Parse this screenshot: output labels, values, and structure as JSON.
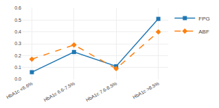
{
  "chart_data": {
    "type": "line",
    "categories": [
      "HbA1c <6.6%",
      "HbA1c 6.6-7.5%",
      "HbA1c 7.6-8.5%",
      "HbA1c >8.5%"
    ],
    "series": [
      {
        "name": "FPG",
        "values": [
          0.06,
          0.23,
          0.11,
          0.51
        ],
        "marker": "square",
        "line_style": "solid"
      },
      {
        "name": "ABF",
        "values": [
          0.17,
          0.29,
          0.09,
          0.4
        ],
        "marker": "diamond",
        "line_style": "dashed"
      }
    ],
    "ylim": [
      0,
      0.6
    ],
    "yticks": [
      {
        "value": 0,
        "label": "0.0"
      },
      0.1,
      0.2,
      0.3,
      0.4,
      0.5,
      0.6
    ],
    "grid": true,
    "legend": "right"
  }
}
